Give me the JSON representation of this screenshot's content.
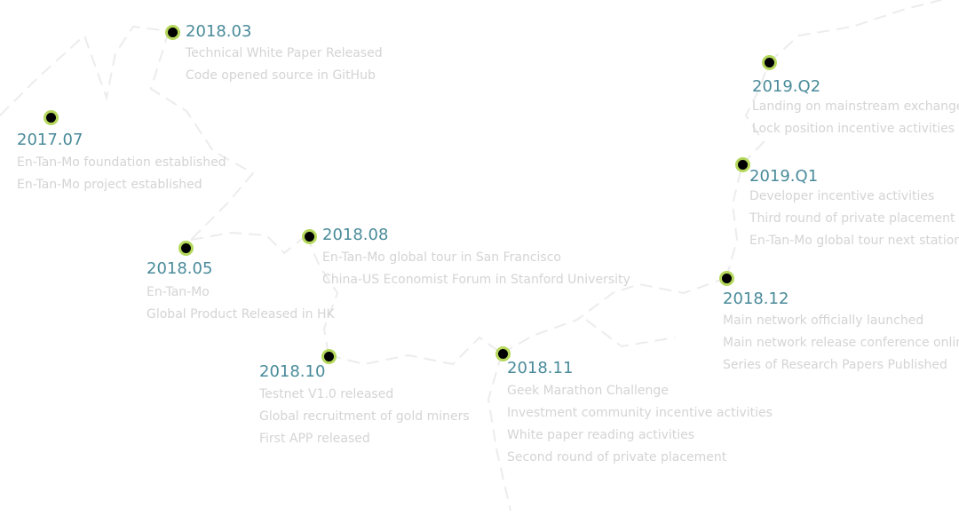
{
  "accent_color": "#4a8b9a",
  "dot_ring_color": "#b5d85c",
  "milestones": [
    {
      "date": "2017.07",
      "items": [
        "En-Tan-Mo foundation established",
        "En-Tan-Mo project established"
      ]
    },
    {
      "date": "2018.03",
      "items": [
        "Technical White Paper Released",
        "Code opened source in GitHub"
      ]
    },
    {
      "date": "2018.05",
      "items": [
        "En-Tan-Mo",
        "Global Product Released in HK"
      ]
    },
    {
      "date": "2018.08",
      "items": [
        "En-Tan-Mo global tour in San Francisco",
        "China-US Economist Forum in Stanford University"
      ]
    },
    {
      "date": "2018.10",
      "items": [
        "Testnet V1.0 released",
        "Global recruitment of gold miners",
        "First APP released"
      ]
    },
    {
      "date": "2018.11",
      "items": [
        "Geek Marathon Challenge",
        "Investment community incentive activities",
        "White paper reading activities",
        "Second round of private placement"
      ]
    },
    {
      "date": "2018.12",
      "items": [
        "Main network officially launched",
        "Main network release conference online",
        "Series of Research Papers Published"
      ]
    },
    {
      "date": "2019.Q1",
      "items": [
        "Developer incentive activities",
        "Third round of private placement",
        "En-Tan-Mo global tour next station"
      ]
    },
    {
      "date": "2019.Q2",
      "items": [
        "Landing on mainstream exchanges",
        "Lock position incentive activities"
      ]
    }
  ]
}
